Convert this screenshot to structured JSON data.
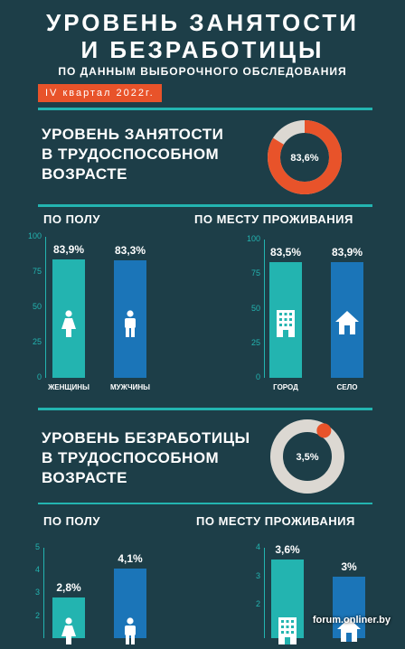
{
  "header": {
    "title_line1": "УРОВЕНЬ ЗАНЯТОСТИ",
    "title_line2": "И БЕЗРАБОТИЦЫ",
    "subtitle": "ПО ДАННЫМ ВЫБОРОЧНОГО ОБСЛЕДОВАНИЯ",
    "quarter": "IV квартал 2022г."
  },
  "employment": {
    "label_line1": "УРОВЕНЬ ЗАНЯТОСТИ",
    "label_line2": "В ТРУДОСПОСОБНОМ",
    "label_line3": "ВОЗРАСТЕ",
    "value_text": "83,6%",
    "value": 83.6,
    "by_gender_label": "ПО ПОЛУ",
    "by_place_label": "ПО МЕСТУ ПРОЖИВАНИЯ"
  },
  "unemployment": {
    "label_line1": "УРОВЕНЬ БЕЗРАБОТИЦЫ",
    "label_line2": "В ТРУДОСПОСОБНОМ",
    "label_line3": "ВОЗРАСТЕ",
    "value_text": "3,5%",
    "value": 3.5,
    "by_gender_label": "ПО ПОЛУ",
    "by_place_label": "ПО МЕСТУ ПРОЖИВАНИЯ"
  },
  "watermark": "forum.onliner.by",
  "colors": {
    "background": "#1d3e48",
    "teal": "#23b4b0",
    "blue": "#1b75b8",
    "orange": "#e8532a",
    "light": "#dcd8d2"
  },
  "chart_data": [
    {
      "type": "pie",
      "title": "УРОВЕНЬ ЗАНЯТОСТИ В ТРУДОСПОСОБНОМ ВОЗРАСТЕ",
      "values": [
        83.6,
        16.4
      ],
      "center_label": "83,6%"
    },
    {
      "type": "bar",
      "title": "ПО ПОЛУ",
      "categories": [
        "ЖЕНЩИНЫ",
        "МУЖЧИНЫ"
      ],
      "values": [
        83.9,
        83.3
      ],
      "labels": [
        "83,9%",
        "83,3%"
      ],
      "ylim": [
        0,
        100
      ],
      "yticks": [
        0,
        25,
        50,
        75,
        100
      ],
      "icons": [
        "female-icon",
        "male-icon"
      ]
    },
    {
      "type": "bar",
      "title": "ПО МЕСТУ ПРОЖИВАНИЯ",
      "categories": [
        "ГОРОД",
        "СЕЛО"
      ],
      "values": [
        83.5,
        83.9
      ],
      "labels": [
        "83,5%",
        "83,9%"
      ],
      "ylim": [
        0,
        100
      ],
      "yticks": [
        0,
        25,
        50,
        75,
        100
      ],
      "icons": [
        "building-icon",
        "house-icon"
      ]
    },
    {
      "type": "pie",
      "title": "УРОВЕНЬ БЕЗРАБОТИЦЫ В ТРУДОСПОСОБНОМ ВОЗРАСТЕ",
      "values": [
        3.5,
        96.5
      ],
      "center_label": "3,5%"
    },
    {
      "type": "bar",
      "title": "ПО ПОЛУ",
      "categories": [
        "",
        ""
      ],
      "values": [
        2.8,
        4.1
      ],
      "labels": [
        "2,8%",
        "4,1%"
      ],
      "ylim": [
        0,
        5
      ],
      "yticks": [
        2,
        3,
        4,
        5
      ],
      "icons": [
        "female-icon",
        "male-icon"
      ]
    },
    {
      "type": "bar",
      "title": "ПО МЕСТУ ПРОЖИВАНИЯ",
      "categories": [
        "",
        ""
      ],
      "values": [
        3.6,
        3.0
      ],
      "labels": [
        "3,6%",
        "3%"
      ],
      "ylim": [
        0,
        4
      ],
      "yticks": [
        2,
        3,
        4
      ],
      "icons": [
        "building-icon",
        "house-icon"
      ]
    }
  ]
}
